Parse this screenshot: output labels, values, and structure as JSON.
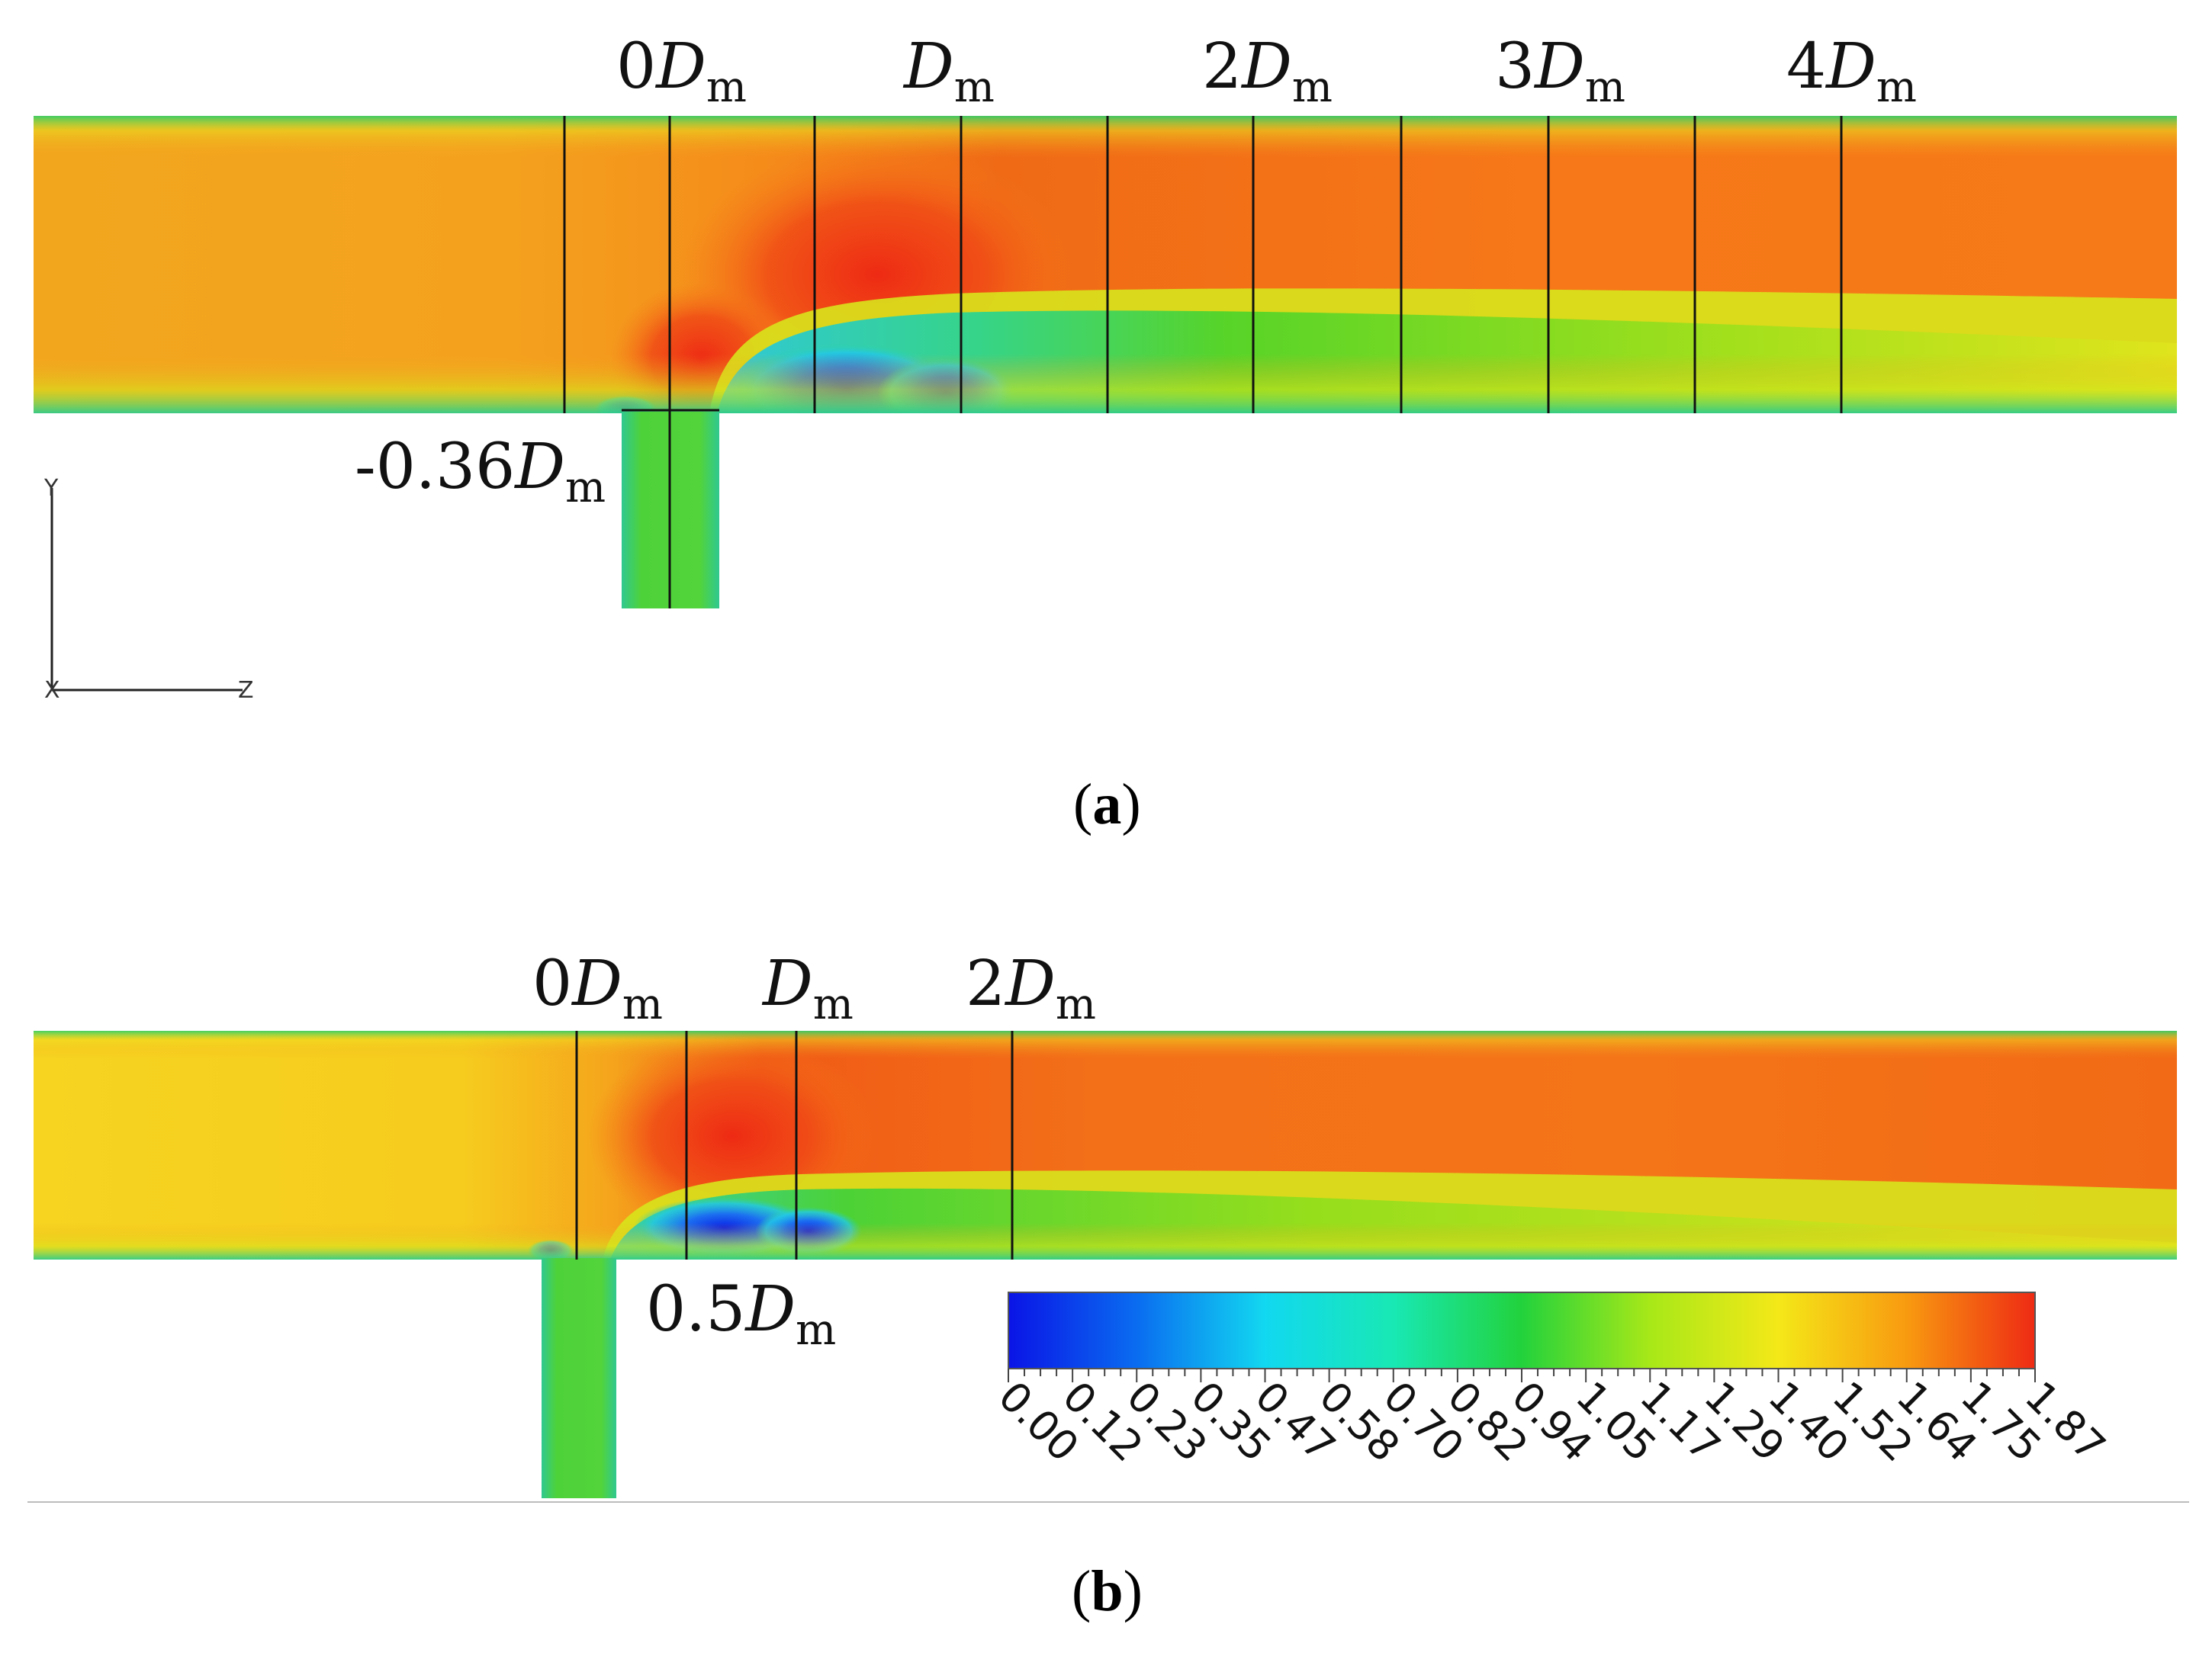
{
  "panel_a": {
    "caption_open": "(",
    "caption_letter": "a",
    "caption_close": ")",
    "station_labels": [
      {
        "prefix": "0",
        "symbol": "D",
        "sub": "m"
      },
      {
        "prefix": "",
        "symbol": "D",
        "sub": "m"
      },
      {
        "prefix": "2",
        "symbol": "D",
        "sub": "m"
      },
      {
        "prefix": "3",
        "symbol": "D",
        "sub": "m"
      },
      {
        "prefix": "4",
        "symbol": "D",
        "sub": "m"
      }
    ],
    "branch_label": {
      "prefix": "-0.36",
      "symbol": "D",
      "sub": "m"
    },
    "axes": {
      "vertical": "Y",
      "horizontal": "Z",
      "origin": "X"
    }
  },
  "panel_b": {
    "caption_open": "(",
    "caption_letter": "b",
    "caption_close": ")",
    "station_labels": [
      {
        "prefix": "0",
        "symbol": "D",
        "sub": "m"
      },
      {
        "prefix": "",
        "symbol": "D",
        "sub": "m"
      },
      {
        "prefix": "2",
        "symbol": "D",
        "sub": "m"
      }
    ],
    "branch_label": {
      "prefix": "0.5",
      "symbol": "D",
      "sub": "m"
    }
  },
  "colorbar": {
    "ticks": [
      "0.00",
      "0.12",
      "0.23",
      "0.35",
      "0.47",
      "0.58",
      "0.70",
      "0.82",
      "0.94",
      "1.05",
      "1.17",
      "1.29",
      "1.40",
      "1.52",
      "1.64",
      "1.75",
      "1.87"
    ],
    "colors": [
      "#0a14e6",
      "#0a6cf0",
      "#12d8f0",
      "#18e8b4",
      "#22d23c",
      "#a8e818",
      "#f4e818",
      "#f89a10",
      "#ee2a14"
    ]
  },
  "field_colors": {
    "core": "#f67a18",
    "hot": "#ee3a14",
    "upstream": "#f4a21e",
    "upstream_b": "#f6d61e",
    "shear": "#b8e41c",
    "wake": "#58d428",
    "recirc": "#1c6cf0",
    "wall": "#34c8a0",
    "branch": "#4ed23a"
  }
}
